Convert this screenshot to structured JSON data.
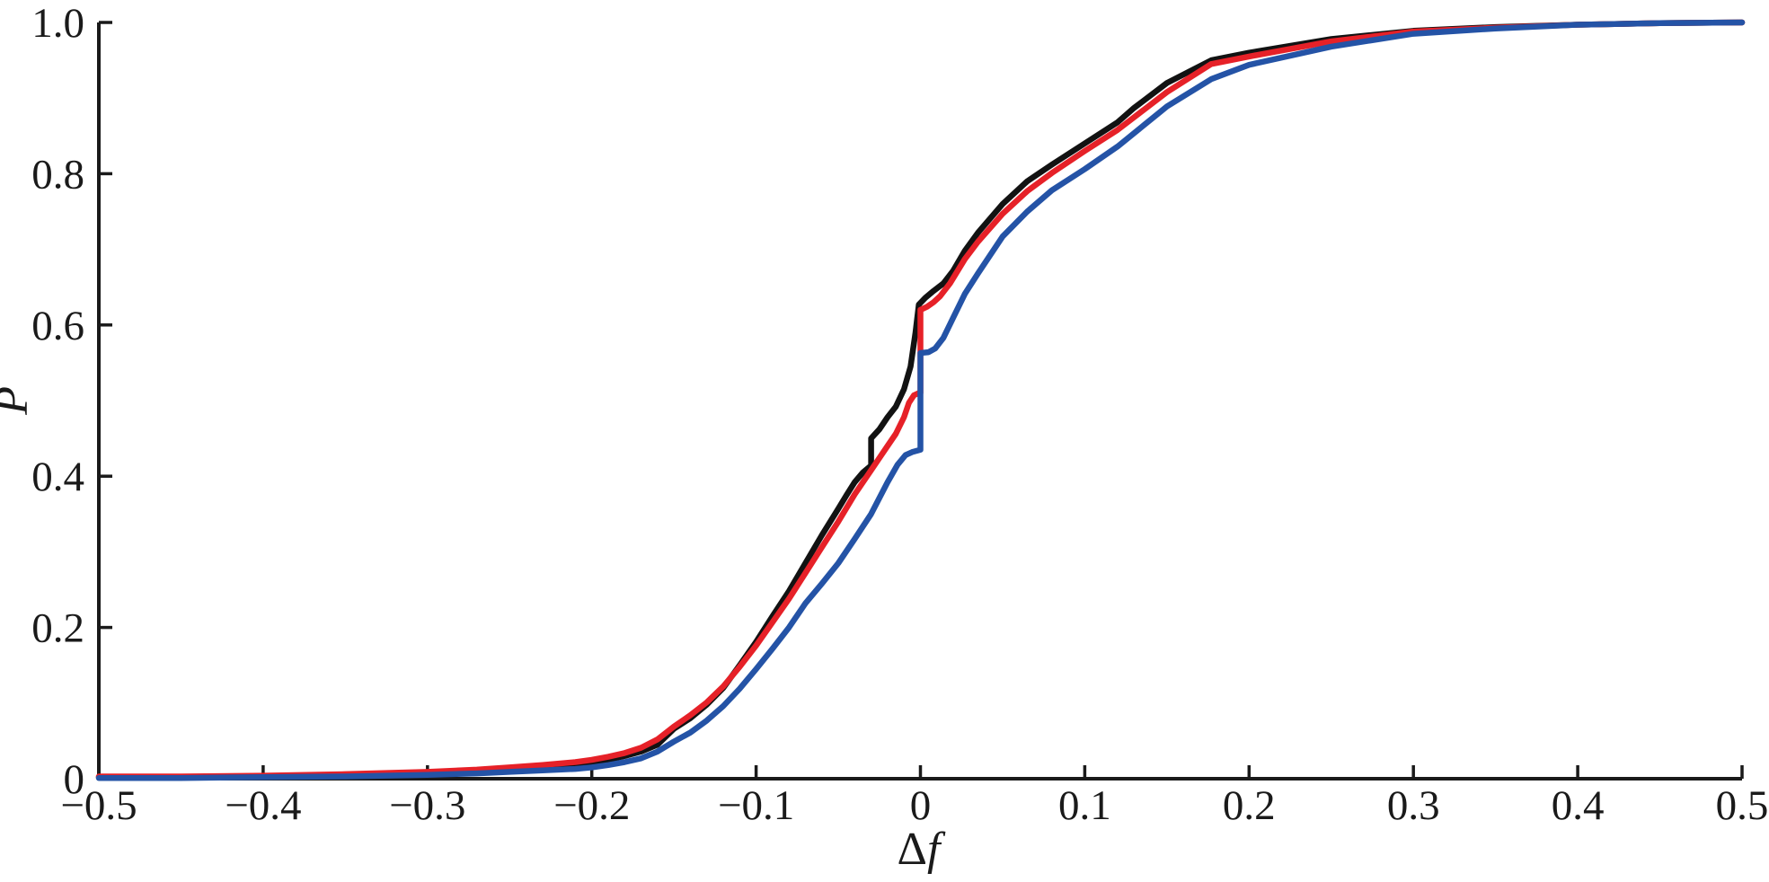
{
  "chart_data": {
    "type": "line",
    "title": "",
    "xlabel": "Δf",
    "ylabel": "P",
    "xlim": [
      -0.5,
      0.5
    ],
    "ylim": [
      0,
      1.0
    ],
    "grid": false,
    "legend": "none",
    "axis_color": "#1a1a1a",
    "background_color": "#ffffff",
    "x_ticks": [
      -0.5,
      -0.4,
      -0.3,
      -0.2,
      -0.1,
      0,
      0.1,
      0.2,
      0.3,
      0.4,
      0.5
    ],
    "x_tick_labels": [
      "−0.5",
      "−0.4",
      "−0.3",
      "−0.2",
      "−0.1",
      "0",
      "0.1",
      "0.2",
      "0.3",
      "0.4",
      "0.5"
    ],
    "y_ticks": [
      0,
      0.2,
      0.4,
      0.6,
      0.8,
      1.0
    ],
    "y_tick_labels": [
      "0",
      "0.2",
      "0.4",
      "0.6",
      "0.8",
      "1.0"
    ],
    "series": [
      {
        "name": "black-cdf",
        "color": "#121212",
        "points": [
          [
            -0.5,
            0.002
          ],
          [
            -0.45,
            0.002
          ],
          [
            -0.4,
            0.003
          ],
          [
            -0.35,
            0.004
          ],
          [
            -0.3,
            0.007
          ],
          [
            -0.27,
            0.009
          ],
          [
            -0.25,
            0.012
          ],
          [
            -0.23,
            0.015
          ],
          [
            -0.21,
            0.018
          ],
          [
            -0.2,
            0.021
          ],
          [
            -0.19,
            0.025
          ],
          [
            -0.18,
            0.03
          ],
          [
            -0.17,
            0.036
          ],
          [
            -0.16,
            0.045
          ],
          [
            -0.15,
            0.066
          ],
          [
            -0.14,
            0.08
          ],
          [
            -0.13,
            0.098
          ],
          [
            -0.12,
            0.12
          ],
          [
            -0.11,
            0.15
          ],
          [
            -0.1,
            0.181
          ],
          [
            -0.09,
            0.215
          ],
          [
            -0.08,
            0.248
          ],
          [
            -0.07,
            0.285
          ],
          [
            -0.06,
            0.322
          ],
          [
            -0.05,
            0.357
          ],
          [
            -0.045,
            0.375
          ],
          [
            -0.04,
            0.392
          ],
          [
            -0.035,
            0.405
          ],
          [
            -0.03,
            0.414
          ],
          [
            -0.03,
            0.45
          ],
          [
            -0.025,
            0.462
          ],
          [
            -0.02,
            0.478
          ],
          [
            -0.015,
            0.492
          ],
          [
            -0.01,
            0.515
          ],
          [
            -0.006,
            0.545
          ],
          [
            -0.003,
            0.59
          ],
          [
            -0.001,
            0.627
          ],
          [
            0.003,
            0.636
          ],
          [
            0.008,
            0.645
          ],
          [
            0.014,
            0.655
          ],
          [
            0.02,
            0.672
          ],
          [
            0.027,
            0.698
          ],
          [
            0.035,
            0.722
          ],
          [
            0.05,
            0.76
          ],
          [
            0.065,
            0.79
          ],
          [
            0.08,
            0.812
          ],
          [
            0.1,
            0.84
          ],
          [
            0.12,
            0.868
          ],
          [
            0.13,
            0.887
          ],
          [
            0.15,
            0.92
          ],
          [
            0.177,
            0.95
          ],
          [
            0.2,
            0.96
          ],
          [
            0.25,
            0.978
          ],
          [
            0.3,
            0.989
          ],
          [
            0.35,
            0.994
          ],
          [
            0.4,
            0.997
          ],
          [
            0.45,
            0.999
          ],
          [
            0.5,
            1.0
          ]
        ]
      },
      {
        "name": "red-cdf",
        "color": "#e62128",
        "points": [
          [
            -0.5,
            0.003
          ],
          [
            -0.45,
            0.003
          ],
          [
            -0.4,
            0.004
          ],
          [
            -0.35,
            0.006
          ],
          [
            -0.3,
            0.009
          ],
          [
            -0.27,
            0.012
          ],
          [
            -0.25,
            0.015
          ],
          [
            -0.23,
            0.018
          ],
          [
            -0.21,
            0.022
          ],
          [
            -0.2,
            0.025
          ],
          [
            -0.19,
            0.029
          ],
          [
            -0.18,
            0.034
          ],
          [
            -0.17,
            0.041
          ],
          [
            -0.16,
            0.052
          ],
          [
            -0.15,
            0.069
          ],
          [
            -0.14,
            0.084
          ],
          [
            -0.13,
            0.101
          ],
          [
            -0.12,
            0.122
          ],
          [
            -0.11,
            0.148
          ],
          [
            -0.1,
            0.176
          ],
          [
            -0.09,
            0.207
          ],
          [
            -0.08,
            0.238
          ],
          [
            -0.07,
            0.272
          ],
          [
            -0.06,
            0.306
          ],
          [
            -0.05,
            0.34
          ],
          [
            -0.04,
            0.376
          ],
          [
            -0.03,
            0.408
          ],
          [
            -0.02,
            0.44
          ],
          [
            -0.015,
            0.456
          ],
          [
            -0.01,
            0.478
          ],
          [
            -0.007,
            0.497
          ],
          [
            -0.004,
            0.507
          ],
          [
            -0.001,
            0.51
          ],
          [
            0.0,
            0.51
          ],
          [
            0.0,
            0.62
          ],
          [
            0.004,
            0.624
          ],
          [
            0.008,
            0.63
          ],
          [
            0.012,
            0.638
          ],
          [
            0.018,
            0.655
          ],
          [
            0.027,
            0.687
          ],
          [
            0.035,
            0.71
          ],
          [
            0.05,
            0.747
          ],
          [
            0.065,
            0.777
          ],
          [
            0.08,
            0.801
          ],
          [
            0.1,
            0.83
          ],
          [
            0.12,
            0.858
          ],
          [
            0.15,
            0.908
          ],
          [
            0.177,
            0.945
          ],
          [
            0.2,
            0.955
          ],
          [
            0.25,
            0.975
          ],
          [
            0.3,
            0.988
          ],
          [
            0.35,
            0.993
          ],
          [
            0.4,
            0.997
          ],
          [
            0.45,
            0.999
          ],
          [
            0.5,
            1.0
          ]
        ]
      },
      {
        "name": "blue-cdf",
        "color": "#2453a6",
        "points": [
          [
            -0.5,
            0.001
          ],
          [
            -0.45,
            0.001
          ],
          [
            -0.4,
            0.002
          ],
          [
            -0.35,
            0.003
          ],
          [
            -0.3,
            0.005
          ],
          [
            -0.27,
            0.007
          ],
          [
            -0.25,
            0.009
          ],
          [
            -0.23,
            0.011
          ],
          [
            -0.21,
            0.013
          ],
          [
            -0.2,
            0.015
          ],
          [
            -0.19,
            0.018
          ],
          [
            -0.18,
            0.022
          ],
          [
            -0.17,
            0.027
          ],
          [
            -0.16,
            0.036
          ],
          [
            -0.15,
            0.049
          ],
          [
            -0.14,
            0.061
          ],
          [
            -0.13,
            0.077
          ],
          [
            -0.12,
            0.096
          ],
          [
            -0.11,
            0.119
          ],
          [
            -0.1,
            0.145
          ],
          [
            -0.09,
            0.172
          ],
          [
            -0.08,
            0.2
          ],
          [
            -0.07,
            0.232
          ],
          [
            -0.06,
            0.258
          ],
          [
            -0.05,
            0.285
          ],
          [
            -0.04,
            0.317
          ],
          [
            -0.03,
            0.35
          ],
          [
            -0.02,
            0.392
          ],
          [
            -0.014,
            0.415
          ],
          [
            -0.009,
            0.428
          ],
          [
            -0.005,
            0.432
          ],
          [
            0.0,
            0.435
          ],
          [
            0.0,
            0.563
          ],
          [
            0.005,
            0.564
          ],
          [
            0.009,
            0.569
          ],
          [
            0.014,
            0.583
          ],
          [
            0.02,
            0.61
          ],
          [
            0.027,
            0.641
          ],
          [
            0.035,
            0.668
          ],
          [
            0.05,
            0.717
          ],
          [
            0.065,
            0.75
          ],
          [
            0.08,
            0.778
          ],
          [
            0.1,
            0.806
          ],
          [
            0.12,
            0.836
          ],
          [
            0.15,
            0.889
          ],
          [
            0.177,
            0.925
          ],
          [
            0.2,
            0.944
          ],
          [
            0.25,
            0.968
          ],
          [
            0.3,
            0.985
          ],
          [
            0.35,
            0.992
          ],
          [
            0.4,
            0.997
          ],
          [
            0.45,
            0.999
          ],
          [
            0.5,
            1.0
          ]
        ]
      }
    ]
  }
}
